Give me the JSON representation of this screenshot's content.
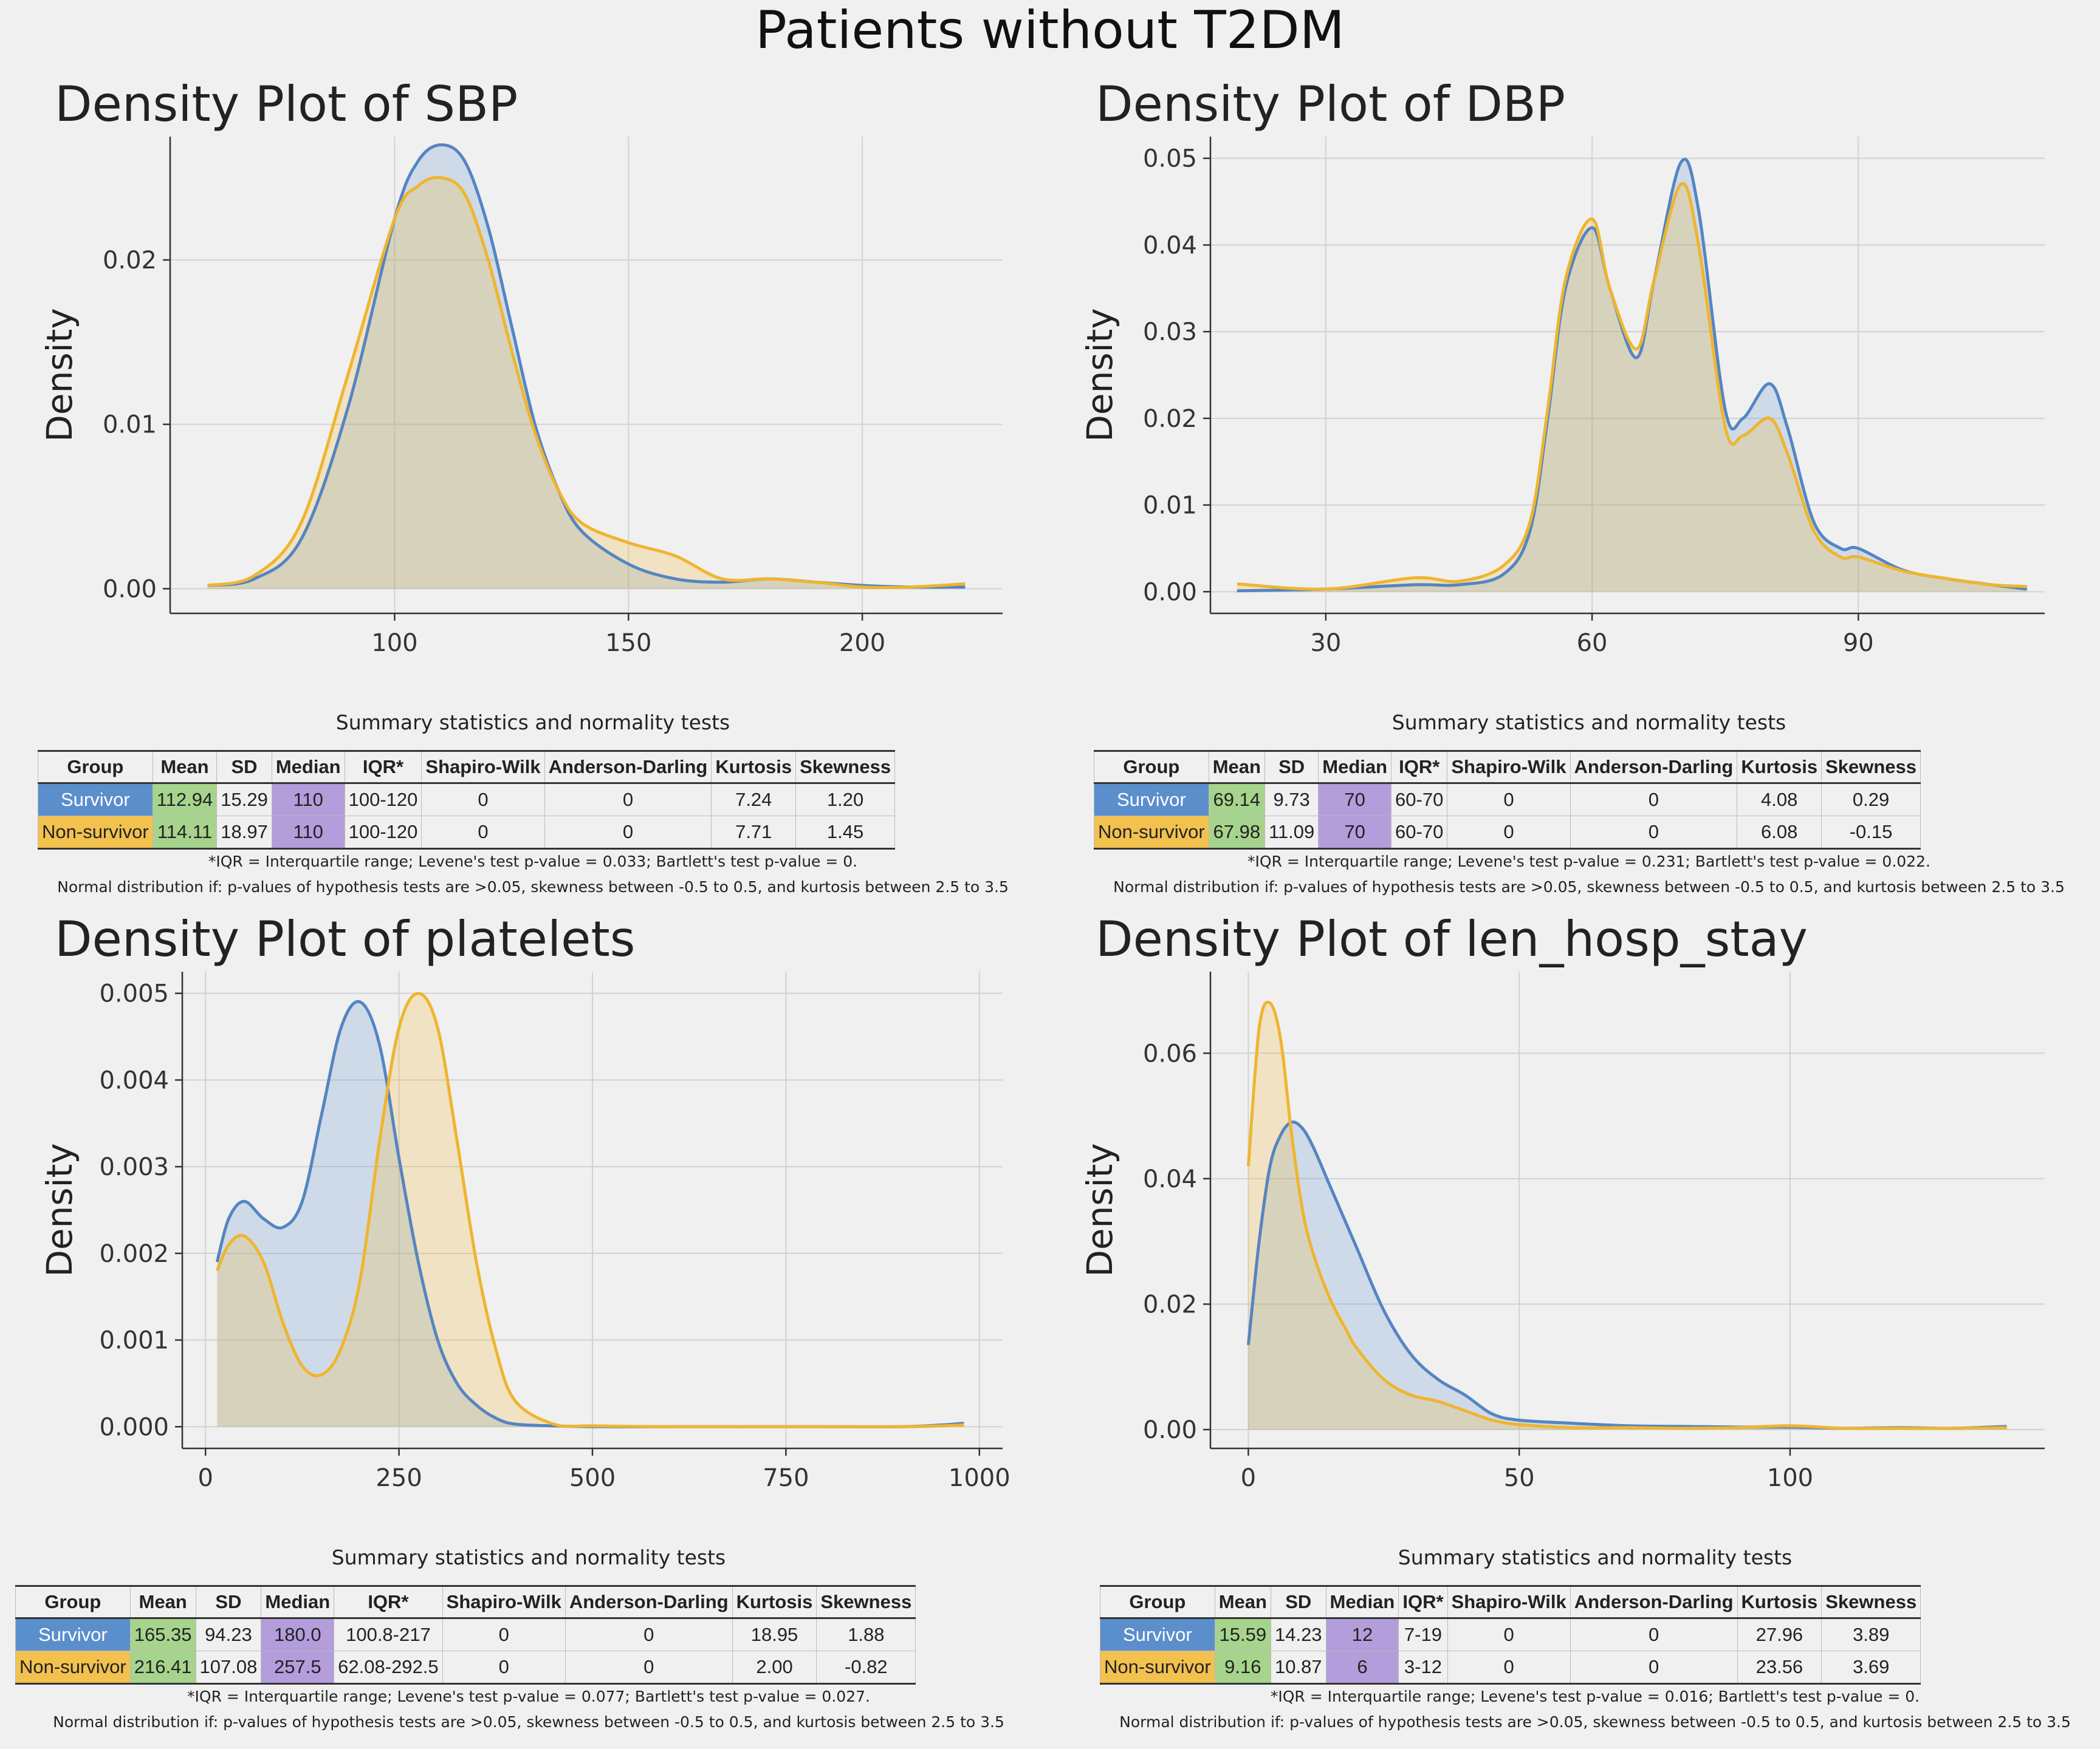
{
  "page_title": "Patients without T2DM",
  "colors": {
    "survivor": "#5b8fcc",
    "non_survivor": "#f2b632",
    "overlap_fill": "#c9c6a6"
  },
  "table_headers": [
    "Group",
    "Mean",
    "SD",
    "Median",
    "IQR*",
    "Shapiro-Wilk",
    "Anderson-Darling",
    "Kurtosis",
    "Skewness"
  ],
  "table_caption": "Summary statistics and normality tests",
  "normal_note": "Normal distribution if: p-values of hypothesis tests are >0.05, skewness between -0.5 to 0.5, and kurtosis between 2.5 to 3.5",
  "chart_data": [
    {
      "type": "area",
      "title": "Density Plot of SBP",
      "xlabel": "",
      "ylabel": "Density",
      "xlim": [
        52,
        230
      ],
      "ylim": [
        -0.0015,
        0.0275
      ],
      "xticks": [
        100,
        150,
        200
      ],
      "xtick_labels": [
        "100",
        "150",
        "200"
      ],
      "yticks": [
        0,
        0.01,
        0.02
      ],
      "ytick_labels": [
        "0.00",
        "0.01",
        "0.02"
      ],
      "grid": true,
      "series": [
        {
          "name": "Survivor",
          "x": [
            60,
            70,
            80,
            90,
            100,
            105,
            110,
            115,
            120,
            125,
            130,
            135,
            140,
            150,
            160,
            170,
            180,
            190,
            200,
            210,
            222
          ],
          "y": [
            0.0002,
            0.0006,
            0.003,
            0.011,
            0.0225,
            0.026,
            0.027,
            0.026,
            0.022,
            0.016,
            0.01,
            0.006,
            0.0035,
            0.0015,
            0.0006,
            0.0004,
            0.0006,
            0.0004,
            0.0002,
            0.0001,
            0.0001
          ]
        },
        {
          "name": "Non-survivor",
          "x": [
            60,
            70,
            80,
            90,
            100,
            105,
            110,
            115,
            120,
            125,
            130,
            135,
            140,
            150,
            160,
            170,
            180,
            190,
            200,
            210,
            222
          ],
          "y": [
            0.0002,
            0.0008,
            0.004,
            0.013,
            0.0225,
            0.0245,
            0.025,
            0.024,
            0.02,
            0.0145,
            0.0095,
            0.006,
            0.004,
            0.0028,
            0.002,
            0.0006,
            0.0006,
            0.0004,
            0.0001,
            0.0001,
            0.0003
          ]
        }
      ]
    },
    {
      "type": "area",
      "title": "Density Plot of DBP",
      "xlabel": "",
      "ylabel": "Density",
      "xlim": [
        17,
        111
      ],
      "ylim": [
        -0.0025,
        0.0525
      ],
      "xticks": [
        30,
        60,
        90
      ],
      "xtick_labels": [
        "30",
        "60",
        "90"
      ],
      "yticks": [
        0,
        0.01,
        0.02,
        0.03,
        0.04,
        0.05
      ],
      "ytick_labels": [
        "0.00",
        "0.01",
        "0.02",
        "0.03",
        "0.04",
        "0.05"
      ],
      "grid": true,
      "series": [
        {
          "name": "Survivor",
          "x": [
            20,
            30,
            40,
            45,
            50,
            53,
            55,
            57,
            60,
            62,
            65,
            67,
            70,
            72,
            75,
            77,
            80,
            82,
            85,
            88,
            90,
            95,
            100,
            105,
            109
          ],
          "y": [
            0.0001,
            0.0003,
            0.0008,
            0.0008,
            0.002,
            0.007,
            0.02,
            0.035,
            0.042,
            0.035,
            0.027,
            0.036,
            0.0495,
            0.044,
            0.021,
            0.02,
            0.024,
            0.019,
            0.008,
            0.005,
            0.005,
            0.0025,
            0.0015,
            0.0008,
            0.0003
          ]
        },
        {
          "name": "Non-survivor",
          "x": [
            20,
            30,
            40,
            45,
            50,
            53,
            55,
            57,
            60,
            62,
            65,
            67,
            70,
            72,
            75,
            77,
            80,
            82,
            85,
            88,
            90,
            95,
            100,
            105,
            109
          ],
          "y": [
            0.0009,
            0.0003,
            0.0016,
            0.0012,
            0.003,
            0.008,
            0.021,
            0.036,
            0.043,
            0.035,
            0.028,
            0.036,
            0.047,
            0.04,
            0.019,
            0.018,
            0.02,
            0.016,
            0.007,
            0.004,
            0.004,
            0.0024,
            0.0015,
            0.0008,
            0.0006
          ]
        }
      ]
    },
    {
      "type": "area",
      "title": "Density Plot of platelets",
      "xlabel": "",
      "ylabel": "Density",
      "xlim": [
        -30,
        1030
      ],
      "ylim": [
        -0.00025,
        0.00525
      ],
      "xticks": [
        0,
        250,
        500,
        750,
        1000
      ],
      "xtick_labels": [
        "0",
        "250",
        "500",
        "750",
        "1000"
      ],
      "yticks": [
        0,
        0.001,
        0.002,
        0.003,
        0.004,
        0.005
      ],
      "ytick_labels": [
        "0.000",
        "0.001",
        "0.002",
        "0.003",
        "0.004",
        "0.005"
      ],
      "grid": true,
      "series": [
        {
          "name": "Survivor",
          "x": [
            15,
            30,
            50,
            75,
            100,
            125,
            150,
            175,
            200,
            225,
            250,
            275,
            300,
            325,
            350,
            375,
            400,
            450,
            500,
            600,
            700,
            800,
            900,
            950,
            980
          ],
          "y": [
            0.0019,
            0.0024,
            0.0026,
            0.0024,
            0.0023,
            0.0026,
            0.0036,
            0.0046,
            0.0049,
            0.0044,
            0.0031,
            0.0019,
            0.001,
            0.0005,
            0.00025,
            0.0001,
            3e-05,
            1e-05,
            0,
            0,
            0,
            0,
            0,
            2e-05,
            4e-05
          ]
        },
        {
          "name": "Non-survivor",
          "x": [
            15,
            30,
            50,
            75,
            100,
            125,
            150,
            175,
            200,
            225,
            250,
            275,
            300,
            325,
            350,
            375,
            400,
            450,
            500,
            600,
            700,
            800,
            900,
            950,
            980
          ],
          "y": [
            0.0018,
            0.0021,
            0.0022,
            0.0019,
            0.0012,
            0.0007,
            0.0006,
            0.0009,
            0.0017,
            0.0033,
            0.0046,
            0.005,
            0.0046,
            0.0033,
            0.0019,
            0.0009,
            0.0003,
            3e-05,
            1e-05,
            0,
            0,
            0,
            0,
            1e-05,
            2e-05
          ]
        }
      ]
    },
    {
      "type": "area",
      "title": "Density Plot of len_hosp_stay",
      "xlabel": "",
      "ylabel": "Density",
      "xlim": [
        -7,
        147
      ],
      "ylim": [
        -0.003,
        0.073
      ],
      "xticks": [
        0,
        50,
        100
      ],
      "xtick_labels": [
        "0",
        "50",
        "100"
      ],
      "yticks": [
        0,
        0.02,
        0.04,
        0.06
      ],
      "ytick_labels": [
        "0.00",
        "0.02",
        "0.04",
        "0.06"
      ],
      "grid": true,
      "series": [
        {
          "name": "Survivor",
          "x": [
            0,
            2,
            4,
            6,
            8,
            10,
            12,
            15,
            18,
            20,
            25,
            30,
            35,
            40,
            45,
            50,
            60,
            70,
            80,
            90,
            100,
            110,
            120,
            130,
            140
          ],
          "y": [
            0.0135,
            0.03,
            0.042,
            0.047,
            0.049,
            0.048,
            0.045,
            0.039,
            0.033,
            0.029,
            0.019,
            0.012,
            0.008,
            0.0055,
            0.0025,
            0.0015,
            0.001,
            0.0006,
            0.0005,
            0.0004,
            0.0004,
            0.0002,
            0.0003,
            0.0002,
            0.0005
          ]
        },
        {
          "name": "Non-survivor",
          "x": [
            0,
            2,
            4,
            6,
            8,
            10,
            12,
            15,
            18,
            20,
            25,
            30,
            35,
            40,
            45,
            50,
            60,
            70,
            80,
            90,
            100,
            110,
            120,
            130,
            140
          ],
          "y": [
            0.042,
            0.064,
            0.068,
            0.062,
            0.047,
            0.035,
            0.028,
            0.021,
            0.016,
            0.013,
            0.008,
            0.0055,
            0.0045,
            0.003,
            0.0015,
            0.0008,
            0.0003,
            0.0003,
            0.0002,
            0.0003,
            0.0006,
            0.0002,
            0.0002,
            0.0002,
            0.0003
          ]
        }
      ]
    }
  ],
  "tables": [
    {
      "rows": [
        {
          "group": "Survivor",
          "mean": "112.94",
          "sd": "15.29",
          "median": "110",
          "iqr": "100-120",
          "sw": "0",
          "ad": "0",
          "kurtosis": "7.24",
          "skewness": "1.20"
        },
        {
          "group": "Non-survivor",
          "mean": "114.11",
          "sd": "18.97",
          "median": "110",
          "iqr": "100-120",
          "sw": "0",
          "ad": "0",
          "kurtosis": "7.71",
          "skewness": "1.45"
        }
      ],
      "footnote": "*IQR = Interquartile range; Levene's test p-value = 0.033; Bartlett's test p-value = 0."
    },
    {
      "rows": [
        {
          "group": "Survivor",
          "mean": "69.14",
          "sd": "9.73",
          "median": "70",
          "iqr": "60-70",
          "sw": "0",
          "ad": "0",
          "kurtosis": "4.08",
          "skewness": "0.29"
        },
        {
          "group": "Non-survivor",
          "mean": "67.98",
          "sd": "11.09",
          "median": "70",
          "iqr": "60-70",
          "sw": "0",
          "ad": "0",
          "kurtosis": "6.08",
          "skewness": "-0.15"
        }
      ],
      "footnote": "*IQR = Interquartile range; Levene's test p-value = 0.231; Bartlett's test p-value = 0.022."
    },
    {
      "rows": [
        {
          "group": "Survivor",
          "mean": "165.35",
          "sd": "94.23",
          "median": "180.0",
          "iqr": "100.8-217",
          "sw": "0",
          "ad": "0",
          "kurtosis": "18.95",
          "skewness": "1.88"
        },
        {
          "group": "Non-survivor",
          "mean": "216.41",
          "sd": "107.08",
          "median": "257.5",
          "iqr": "62.08-292.5",
          "sw": "0",
          "ad": "0",
          "kurtosis": "2.00",
          "skewness": "-0.82"
        }
      ],
      "footnote": "*IQR = Interquartile range; Levene's test p-value = 0.077; Bartlett's test p-value = 0.027."
    },
    {
      "rows": [
        {
          "group": "Survivor",
          "mean": "15.59",
          "sd": "14.23",
          "median": "12",
          "iqr": "7-19",
          "sw": "0",
          "ad": "0",
          "kurtosis": "27.96",
          "skewness": "3.89"
        },
        {
          "group": "Non-survivor",
          "mean": "9.16",
          "sd": "10.87",
          "median": "6",
          "iqr": "3-12",
          "sw": "0",
          "ad": "0",
          "kurtosis": "23.56",
          "skewness": "3.69"
        }
      ],
      "footnote": "*IQR = Interquartile range; Levene's test p-value = 0.016; Bartlett's test p-value = 0."
    }
  ]
}
